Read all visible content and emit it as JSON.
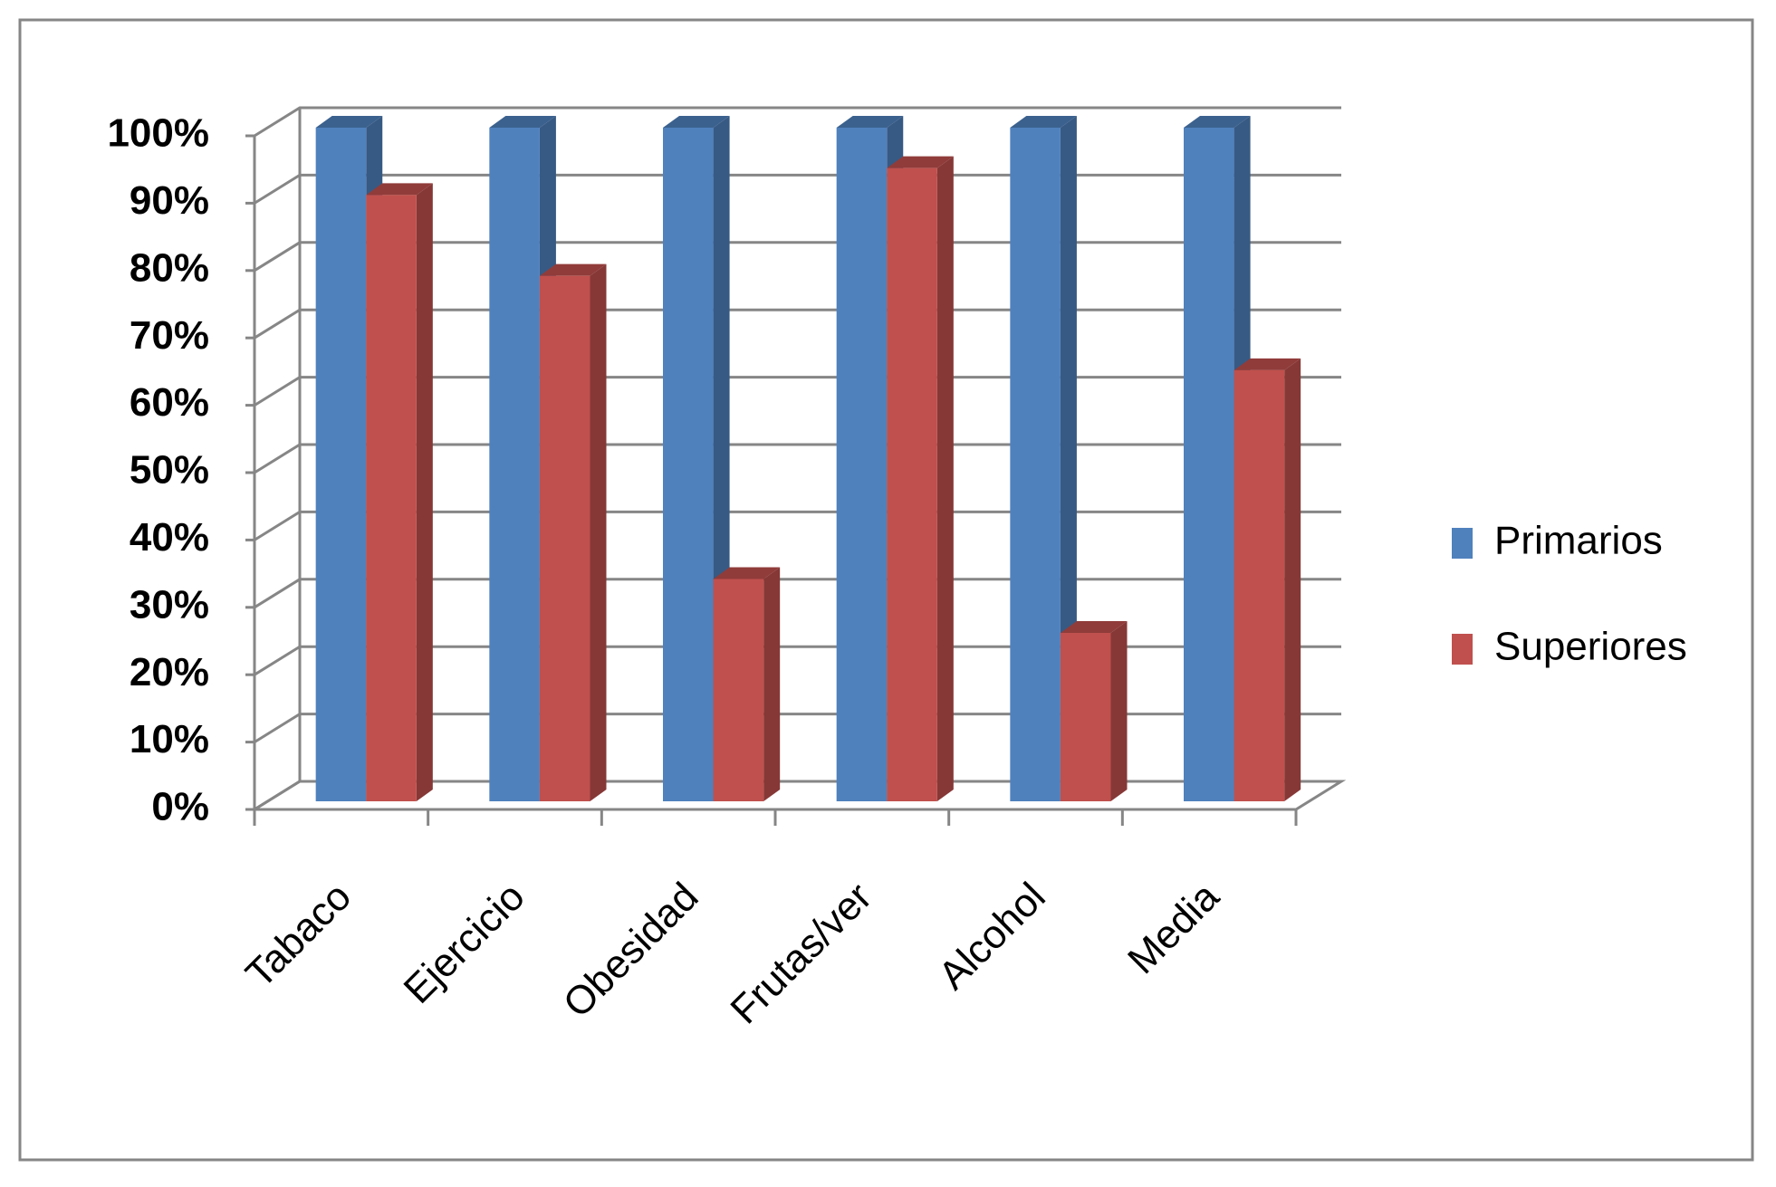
{
  "chart_data": {
    "type": "bar3d",
    "categories": [
      "Tabaco",
      "Ejercicio",
      "Obesidad",
      "Frutas/ver",
      "Alcohol",
      "Media"
    ],
    "series": [
      {
        "name": "Primarios",
        "color": "#4f81bd",
        "values": [
          100,
          100,
          100,
          100,
          100,
          100
        ]
      },
      {
        "name": "Superiores",
        "color": "#c0504d",
        "values": [
          90,
          78,
          33,
          94,
          25,
          64
        ]
      }
    ],
    "ylim": [
      0,
      100
    ],
    "yticks": [
      {
        "value": 0,
        "label": "0%"
      },
      {
        "value": 10,
        "label": "10%"
      },
      {
        "value": 20,
        "label": "20%"
      },
      {
        "value": 30,
        "label": "30%"
      },
      {
        "value": 40,
        "label": "40%"
      },
      {
        "value": 50,
        "label": "50%"
      },
      {
        "value": 60,
        "label": "60%"
      },
      {
        "value": 70,
        "label": "70%"
      },
      {
        "value": 80,
        "label": "80%"
      },
      {
        "value": 90,
        "label": "90%"
      },
      {
        "value": 100,
        "label": "100%"
      }
    ],
    "grid": true,
    "legend": "right"
  }
}
